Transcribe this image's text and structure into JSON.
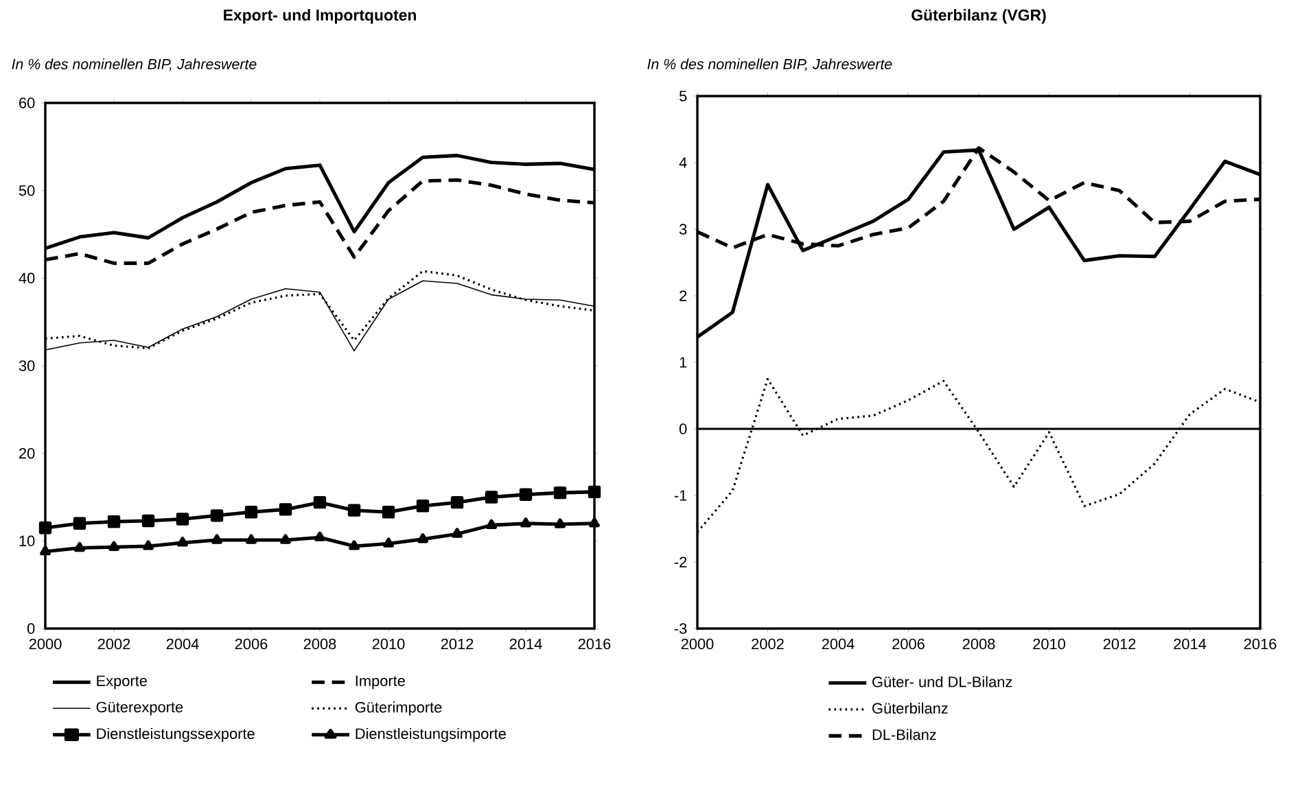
{
  "chart_data": [
    {
      "type": "line",
      "title": "Export- und Importquoten",
      "subtitle": "In % des nominellen BIP, Jahreswerte",
      "x": [
        2000,
        2001,
        2002,
        2003,
        2004,
        2005,
        2006,
        2007,
        2008,
        2009,
        2010,
        2011,
        2012,
        2013,
        2014,
        2015,
        2016
      ],
      "xlim": [
        2000,
        2016
      ],
      "xticks": [
        2000,
        2002,
        2004,
        2006,
        2008,
        2010,
        2012,
        2014,
        2016
      ],
      "ylim": [
        0,
        60
      ],
      "yticks": [
        0,
        10,
        20,
        30,
        40,
        50,
        60
      ],
      "grid": false,
      "legend": "bottom",
      "series": [
        {
          "name": "Exporte",
          "color": "#000000",
          "line_style": "solid",
          "marker": "none",
          "values": [
            43.4,
            44.7,
            45.2,
            44.6,
            46.9,
            48.7,
            50.9,
            52.5,
            52.9,
            45.3,
            50.9,
            53.8,
            54.0,
            53.2,
            53.0,
            53.1,
            52.4
          ]
        },
        {
          "name": "Importe",
          "color": "#000000",
          "line_style": "dashed",
          "marker": "none",
          "values": [
            42.1,
            42.8,
            41.7,
            41.7,
            43.9,
            45.6,
            47.5,
            48.3,
            48.7,
            42.4,
            47.7,
            51.1,
            51.2,
            50.6,
            49.6,
            48.9,
            48.6
          ]
        },
        {
          "name": "Güterexporte",
          "color": "#000000",
          "line_style": "solid",
          "marker": "none",
          "values": [
            31.8,
            32.6,
            32.9,
            32.1,
            34.2,
            35.6,
            37.6,
            38.8,
            38.4,
            31.7,
            37.6,
            39.7,
            39.4,
            38.1,
            37.6,
            37.5,
            36.8
          ]
        },
        {
          "name": "Güterimporte",
          "color": "#000000",
          "line_style": "dotted",
          "marker": "none",
          "values": [
            33.1,
            33.4,
            32.3,
            32.0,
            34.0,
            35.4,
            37.2,
            38.0,
            38.2,
            32.9,
            37.7,
            40.8,
            40.3,
            38.7,
            37.5,
            36.8,
            36.3
          ]
        },
        {
          "name": "Dienstleistungssexporte",
          "color": "#000000",
          "line_style": "solid",
          "marker": "square",
          "values": [
            11.5,
            12.0,
            12.2,
            12.3,
            12.5,
            12.9,
            13.3,
            13.6,
            14.4,
            13.5,
            13.3,
            14.0,
            14.4,
            15.0,
            15.3,
            15.5,
            15.6
          ]
        },
        {
          "name": "Dienstleistungsimporte",
          "color": "#000000",
          "line_style": "solid",
          "marker": "triangle",
          "values": [
            8.8,
            9.2,
            9.3,
            9.4,
            9.8,
            10.1,
            10.1,
            10.1,
            10.4,
            9.4,
            9.7,
            10.2,
            10.8,
            11.8,
            12.0,
            11.9,
            12.0
          ]
        }
      ]
    },
    {
      "type": "line",
      "title": "Güterbilanz (VGR)",
      "subtitle": "In % des nominellen BIP, Jahreswerte",
      "x": [
        2000,
        2001,
        2002,
        2003,
        2004,
        2005,
        2006,
        2007,
        2008,
        2009,
        2010,
        2011,
        2012,
        2013,
        2014,
        2015,
        2016
      ],
      "xlim": [
        2000,
        2016
      ],
      "xticks": [
        2000,
        2002,
        2004,
        2006,
        2008,
        2010,
        2012,
        2014,
        2016
      ],
      "ylim": [
        -3,
        5
      ],
      "yticks": [
        -3,
        -2,
        -1,
        0,
        1,
        2,
        3,
        4,
        5
      ],
      "grid": false,
      "legend": "bottom",
      "ref_lines": [
        {
          "axis": "y",
          "value": 0,
          "color": "#000000"
        }
      ],
      "series": [
        {
          "name": "Güter- und DL-Bilanz",
          "color": "#000000",
          "line_style": "solid",
          "marker": "none",
          "values": [
            1.38,
            1.75,
            3.67,
            2.68,
            2.9,
            3.12,
            3.45,
            4.16,
            4.19,
            3.0,
            3.33,
            2.53,
            2.6,
            2.59,
            3.3,
            4.02,
            3.82
          ]
        },
        {
          "name": "Güterbilanz",
          "color": "#000000",
          "line_style": "dotted",
          "marker": "none",
          "values": [
            -1.55,
            -0.93,
            0.75,
            -0.1,
            0.15,
            0.2,
            0.43,
            0.72,
            -0.05,
            -0.87,
            -0.05,
            -1.16,
            -0.98,
            -0.52,
            0.22,
            0.6,
            0.4
          ]
        },
        {
          "name": "DL-Bilanz",
          "color": "#000000",
          "line_style": "dashed",
          "marker": "none",
          "values": [
            2.96,
            2.72,
            2.92,
            2.78,
            2.75,
            2.92,
            3.02,
            3.42,
            4.22,
            3.86,
            3.43,
            3.7,
            3.58,
            3.1,
            3.12,
            3.42,
            3.45
          ]
        }
      ]
    }
  ]
}
